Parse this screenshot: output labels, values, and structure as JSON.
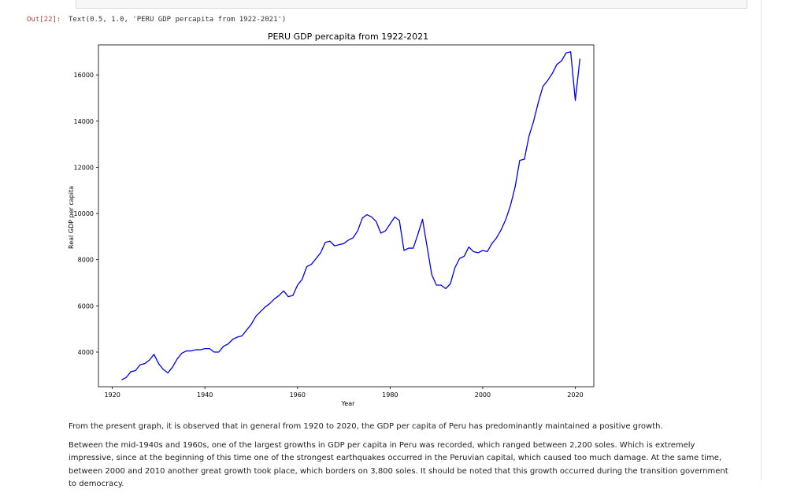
{
  "notebook": {
    "out_prompt": "Out[22]:",
    "out_text": "Text(0.5, 1.0, 'PERU GDP percapita from 1922-2021')",
    "paragraph1": "From the present graph, it is observed that in general from 1920 to 2020, the GDP per capita of Peru has predominantly maintained a positive growth.",
    "paragraph2": "Between the mid-1940s and 1960s, one of the largest growths in GDP per capita in Peru was recorded, which ranged between 2,200 soles. Which is extremely impressive, since at the beginning of this time one of the strongest earthquakes occurred in the Peruvian capital, which caused too much damage. At the same time, between 2000 and 2010 another great growth took place, which borders on 3,800 soles. It should be noted that this growth occurred during the transition government to democracy."
  },
  "colors": {
    "line": "#0000ee",
    "prompt": "#b04545"
  },
  "chart_data": {
    "type": "line",
    "title": "PERU GDP percapita from 1922-2021",
    "xlabel": "Year",
    "ylabel": "Real GDP per capita",
    "xlim": [
      1917,
      2024
    ],
    "ylim": [
      2500,
      17300
    ],
    "xticks": [
      1920,
      1940,
      1960,
      1980,
      2000,
      2020
    ],
    "yticks": [
      4000,
      6000,
      8000,
      10000,
      12000,
      14000,
      16000
    ],
    "grid": false,
    "series": [
      {
        "x": [
          1922,
          1923,
          1924,
          1925,
          1926,
          1927,
          1928,
          1929,
          1930,
          1931,
          1932,
          1933,
          1934,
          1935,
          1936,
          1937,
          1938,
          1939,
          1940,
          1941,
          1942,
          1943,
          1944,
          1945,
          1946,
          1947,
          1948,
          1949,
          1950,
          1951,
          1952,
          1953,
          1954,
          1955,
          1956,
          1957,
          1958,
          1959,
          1960,
          1961,
          1962,
          1963,
          1964,
          1965,
          1966,
          1967,
          1968,
          1969,
          1970,
          1971,
          1972,
          1973,
          1974,
          1975,
          1976,
          1977,
          1978,
          1979,
          1980,
          1981,
          1982,
          1983,
          1984,
          1985,
          1986,
          1987,
          1988,
          1989,
          1990,
          1991,
          1992,
          1993,
          1994,
          1995,
          1996,
          1997,
          1998,
          1999,
          2000,
          2001,
          2002,
          2003,
          2004,
          2005,
          2006,
          2007,
          2008,
          2009,
          2010,
          2011,
          2012,
          2013,
          2014,
          2015,
          2016,
          2017,
          2018,
          2019,
          2020,
          2021
        ],
        "values": [
          2800,
          2900,
          3150,
          3200,
          3450,
          3500,
          3650,
          3900,
          3500,
          3250,
          3100,
          3350,
          3700,
          3950,
          4050,
          4050,
          4100,
          4100,
          4150,
          4150,
          4000,
          4000,
          4250,
          4350,
          4550,
          4650,
          4700,
          4950,
          5200,
          5550,
          5750,
          5950,
          6100,
          6300,
          6450,
          6650,
          6400,
          6450,
          6900,
          7150,
          7700,
          7800,
          8050,
          8300,
          8750,
          8800,
          8600,
          8650,
          8700,
          8850,
          8950,
          9250,
          9800,
          9950,
          9850,
          9650,
          9150,
          9250,
          9550,
          9850,
          9700,
          8400,
          8500,
          8500,
          9100,
          9750,
          8550,
          7350,
          6900,
          6900,
          6750,
          6950,
          7650,
          8050,
          8150,
          8550,
          8350,
          8300,
          8400,
          8350,
          8700,
          8950,
          9300,
          9750,
          10350,
          11150,
          12300,
          12350,
          13350,
          14000,
          14800,
          15500,
          15750,
          16050,
          16450,
          16600,
          16950,
          17000,
          14900,
          16700
        ]
      }
    ]
  }
}
